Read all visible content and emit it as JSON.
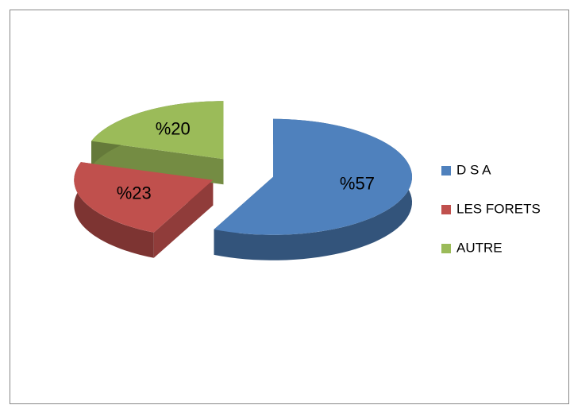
{
  "chart_data": {
    "type": "pie",
    "categories": [
      "D S A",
      "LES FORETS",
      "AUTRE"
    ],
    "values": [
      57,
      23,
      20
    ],
    "value_labels": [
      "%57",
      "%23",
      "%20"
    ],
    "colors": [
      "#4f81bd",
      "#c0504d",
      "#9bbb59"
    ],
    "legend": "right"
  }
}
